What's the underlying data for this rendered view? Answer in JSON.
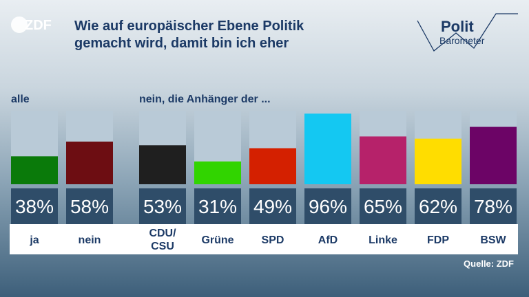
{
  "header": {
    "logo": "ZDF",
    "title_line1": "Wie auf europäischer Ebene Politik",
    "title_line2": "gemacht wird, damit bin ich eher",
    "brand_line1": "Polit",
    "brand_line2": "Barometer"
  },
  "chart_data": {
    "type": "bar",
    "title": "Wie auf europäischer Ebene Politik gemacht wird, damit bin ich eher",
    "group_labels": [
      "alle",
      "nein, die Anhänger der ..."
    ],
    "categories": [
      "ja",
      "nein",
      "CDU/ CSU",
      "Grüne",
      "SPD",
      "AfD",
      "Linke",
      "FDP",
      "BSW"
    ],
    "values": [
      38,
      58,
      53,
      31,
      49,
      96,
      65,
      62,
      78
    ],
    "value_labels": [
      "38%",
      "58%",
      "53%",
      "31%",
      "49%",
      "96%",
      "65%",
      "62%",
      "78%"
    ],
    "colors": [
      "#0a7a0a",
      "#6d0d12",
      "#1f1f1f",
      "#31d400",
      "#d42000",
      "#14c8f2",
      "#b6226a",
      "#ffdd00",
      "#6c0466"
    ],
    "ylim": [
      0,
      100
    ],
    "unit": "%"
  },
  "source": "Quelle: ZDF"
}
